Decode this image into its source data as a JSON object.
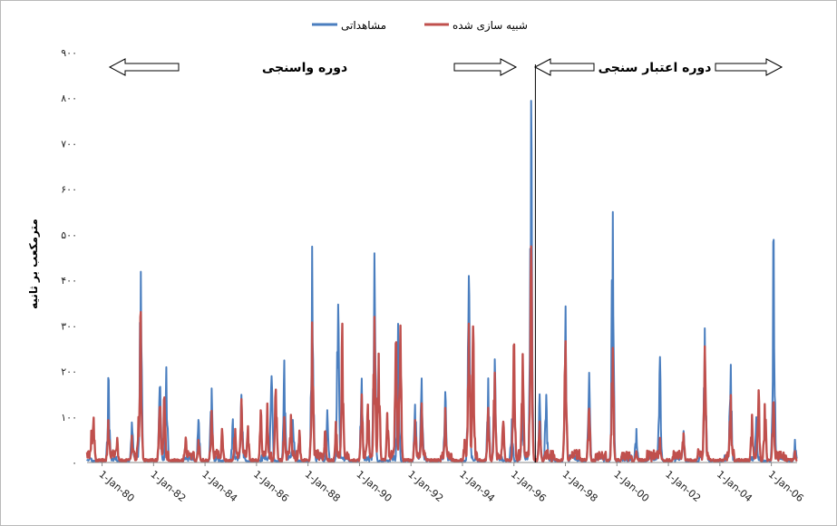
{
  "chart_data": {
    "type": "line",
    "ylabel": "مترمکعب بر ثانیه",
    "ylim": [
      0,
      900
    ],
    "y_ticks": [
      "۰",
      "۱۰۰",
      "۲۰۰",
      "۳۰۰",
      "۴۰۰",
      "۵۰۰",
      "۶۰۰",
      "۷۰۰",
      "۸۰۰",
      "۹۰۰"
    ],
    "x_tick_labels": [
      "1-Jan-80",
      "1-Jan-82",
      "1-Jan-84",
      "1-Jan-86",
      "1-Jan-88",
      "1-Jan-90",
      "1-Jan-92",
      "1-Jan-94",
      "1-Jan-96",
      "1-Jan-98",
      "1-Jan-00",
      "1-Jan-02",
      "1-Jan-04",
      "1-Jan-06"
    ],
    "xlim": [
      "1979-06",
      "2007-01"
    ],
    "split_date": "1996-11",
    "legend_position": "top-center",
    "series": [
      {
        "name": "مشاهداتی",
        "color": "#4a7ebf",
        "peaks": [
          [
            "1980-04",
            190
          ],
          [
            "1981-03",
            90
          ],
          [
            "1981-07",
            425
          ],
          [
            "1982-04",
            170
          ],
          [
            "1982-07",
            210
          ],
          [
            "1983-10",
            95
          ],
          [
            "1984-04",
            165
          ],
          [
            "1985-02",
            95
          ],
          [
            "1985-06",
            150
          ],
          [
            "1986-08",
            190
          ],
          [
            "1987-02",
            225
          ],
          [
            "1987-06",
            95
          ],
          [
            "1988-03",
            478
          ],
          [
            "1988-10",
            115
          ],
          [
            "1989-03",
            348
          ],
          [
            "1990-02",
            185
          ],
          [
            "1990-08",
            460
          ],
          [
            "1991-07",
            305
          ],
          [
            "1992-03",
            130
          ],
          [
            "1992-06",
            185
          ],
          [
            "1993-05",
            155
          ],
          [
            "1994-04",
            410
          ],
          [
            "1995-01",
            185
          ],
          [
            "1995-04",
            230
          ],
          [
            "1995-12",
            95
          ],
          [
            "1996-05",
            130
          ],
          [
            "1996-09",
            795
          ],
          [
            "1997-01",
            150
          ],
          [
            "1997-04",
            150
          ],
          [
            "1998-01",
            348
          ],
          [
            "1998-12",
            200
          ],
          [
            "1999-11",
            558
          ],
          [
            "2000-10",
            75
          ],
          [
            "2001-09",
            235
          ],
          [
            "2002-08",
            70
          ],
          [
            "2003-06",
            295
          ],
          [
            "2004-06",
            218
          ],
          [
            "2005-06",
            100
          ],
          [
            "2006-02",
            500
          ],
          [
            "2006-12",
            50
          ]
        ]
      },
      {
        "name": "شبیه سازی شده",
        "color": "#c0504d",
        "peaks": [
          [
            "1979-08",
            70
          ],
          [
            "1979-09",
            100
          ],
          [
            "1980-04",
            95
          ],
          [
            "1980-08",
            55
          ],
          [
            "1981-03",
            60
          ],
          [
            "1981-06",
            100
          ],
          [
            "1981-07",
            335
          ],
          [
            "1982-04",
            125
          ],
          [
            "1982-06",
            145
          ],
          [
            "1983-04",
            55
          ],
          [
            "1983-10",
            50
          ],
          [
            "1984-04",
            115
          ],
          [
            "1984-09",
            75
          ],
          [
            "1985-03",
            75
          ],
          [
            "1985-06",
            140
          ],
          [
            "1985-09",
            80
          ],
          [
            "1986-03",
            115
          ],
          [
            "1986-06",
            130
          ],
          [
            "1986-10",
            160
          ],
          [
            "1987-02",
            100
          ],
          [
            "1987-05",
            105
          ],
          [
            "1987-09",
            70
          ],
          [
            "1988-03",
            310
          ],
          [
            "1988-09",
            70
          ],
          [
            "1989-02",
            90
          ],
          [
            "1989-05",
            305
          ],
          [
            "1990-02",
            150
          ],
          [
            "1990-05",
            130
          ],
          [
            "1990-08",
            320
          ],
          [
            "1990-10",
            240
          ],
          [
            "1991-02",
            110
          ],
          [
            "1991-06",
            270
          ],
          [
            "1991-08",
            305
          ],
          [
            "1992-03",
            95
          ],
          [
            "1992-06",
            130
          ],
          [
            "1993-05",
            120
          ],
          [
            "1994-02",
            50
          ],
          [
            "1994-04",
            305
          ],
          [
            "1994-06",
            300
          ],
          [
            "1995-01",
            120
          ],
          [
            "1995-04",
            200
          ],
          [
            "1995-08",
            90
          ],
          [
            "1996-01",
            265
          ],
          [
            "1996-05",
            240
          ],
          [
            "1996-09",
            475
          ],
          [
            "1997-01",
            90
          ],
          [
            "1998-01",
            270
          ],
          [
            "1998-12",
            120
          ],
          [
            "1999-11",
            255
          ],
          [
            "2000-10",
            25
          ],
          [
            "2001-09",
            55
          ],
          [
            "2002-08",
            65
          ],
          [
            "2003-03",
            30
          ],
          [
            "2003-06",
            255
          ],
          [
            "2004-06",
            150
          ],
          [
            "2005-04",
            105
          ],
          [
            "2005-07",
            160
          ],
          [
            "2005-10",
            130
          ],
          [
            "2006-02",
            135
          ],
          [
            "2006-12",
            25
          ]
        ]
      }
    ],
    "annotations": {
      "calibration": "دوره واسنجی",
      "validation": "دوره اعتبار سنجی"
    }
  }
}
